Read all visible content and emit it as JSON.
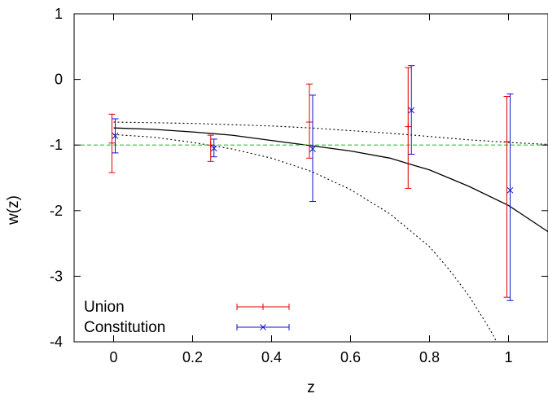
{
  "chart_data": {
    "type": "scatter",
    "xlabel": "z",
    "ylabel": "w(z)",
    "xlim": [
      -0.1,
      1.1
    ],
    "ylim": [
      -4,
      1
    ],
    "x_ticks": [
      "0",
      "0.2",
      "0.4",
      "0.6",
      "0.8",
      "1"
    ],
    "y_ticks": [
      "1",
      "0",
      "-1",
      "-2",
      "-3",
      "-4"
    ],
    "grid": false,
    "legend_position": "bottom-left",
    "reference_line": {
      "y": -1,
      "style": "dashed",
      "color": "#22cc22"
    },
    "series": [
      {
        "name": "Union",
        "color": "#e00000",
        "marker": "plus",
        "points": [
          {
            "x": 0,
            "y": -0.97,
            "ylow": -1.42,
            "yhigh": -0.53
          },
          {
            "x": 0.25,
            "y": -1.0,
            "ylow": -1.25,
            "yhigh": -0.85
          },
          {
            "x": 0.5,
            "y": -0.65,
            "ylow": -1.2,
            "yhigh": -0.07
          },
          {
            "x": 0.75,
            "y": -0.72,
            "ylow": -1.66,
            "yhigh": 0.18
          },
          {
            "x": 1.0,
            "y": -0.95,
            "ylow": -3.32,
            "yhigh": -0.26
          }
        ]
      },
      {
        "name": "Constitution",
        "color": "#1010d0",
        "marker": "cross",
        "points": [
          {
            "x": 0,
            "y": -0.86,
            "ylow": -1.12,
            "yhigh": -0.6
          },
          {
            "x": 0.25,
            "y": -1.05,
            "ylow": -1.18,
            "yhigh": -0.91
          },
          {
            "x": 0.5,
            "y": -1.06,
            "ylow": -1.86,
            "yhigh": -0.24
          },
          {
            "x": 0.75,
            "y": -0.47,
            "ylow": -1.14,
            "yhigh": 0.21
          },
          {
            "x": 1.0,
            "y": -1.69,
            "ylow": -3.37,
            "yhigh": -0.22
          }
        ]
      }
    ],
    "curves": [
      {
        "style": "solid",
        "color": "#000000",
        "points": [
          [
            0,
            -0.74
          ],
          [
            0.1,
            -0.76
          ],
          [
            0.2,
            -0.8
          ],
          [
            0.3,
            -0.85
          ],
          [
            0.4,
            -0.93
          ],
          [
            0.5,
            -1.01
          ],
          [
            0.6,
            -1.09
          ],
          [
            0.7,
            -1.2
          ],
          [
            0.75,
            -1.29
          ],
          [
            0.8,
            -1.38
          ],
          [
            0.9,
            -1.63
          ],
          [
            1.0,
            -1.92
          ],
          [
            1.1,
            -2.32
          ]
        ]
      },
      {
        "style": "dotted",
        "color": "#000000",
        "points": [
          [
            0,
            -0.65
          ],
          [
            0.1,
            -0.66
          ],
          [
            0.2,
            -0.67
          ],
          [
            0.3,
            -0.69
          ],
          [
            0.4,
            -0.71
          ],
          [
            0.5,
            -0.74
          ],
          [
            0.6,
            -0.78
          ],
          [
            0.7,
            -0.82
          ],
          [
            0.8,
            -0.87
          ],
          [
            0.9,
            -0.92
          ],
          [
            1.0,
            -0.96
          ],
          [
            1.1,
            -0.99
          ]
        ]
      },
      {
        "style": "dotted",
        "color": "#000000",
        "points": [
          [
            0,
            -0.84
          ],
          [
            0.1,
            -0.88
          ],
          [
            0.2,
            -0.96
          ],
          [
            0.3,
            -1.06
          ],
          [
            0.4,
            -1.2
          ],
          [
            0.5,
            -1.4
          ],
          [
            0.6,
            -1.68
          ],
          [
            0.7,
            -2.05
          ],
          [
            0.8,
            -2.55
          ],
          [
            0.85,
            -2.9
          ],
          [
            0.9,
            -3.3
          ],
          [
            0.95,
            -3.78
          ],
          [
            0.97,
            -4.0
          ]
        ]
      }
    ]
  }
}
